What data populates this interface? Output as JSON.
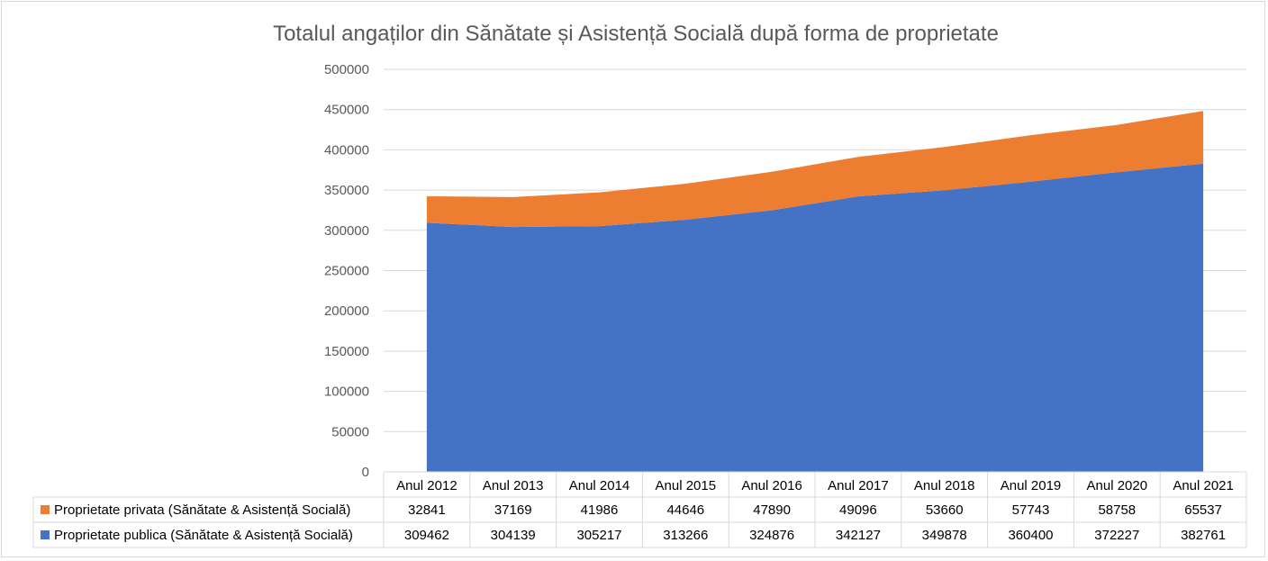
{
  "chart_data": {
    "type": "area",
    "stacked": true,
    "title": "Totalul angaților din Sănătate și Asistență Socială după forma de proprietate",
    "categories": [
      "Anul 2012",
      "Anul 2013",
      "Anul 2014",
      "Anul 2015",
      "Anul 2016",
      "Anul 2017",
      "Anul 2018",
      "Anul 2019",
      "Anul 2020",
      "Anul 2021"
    ],
    "ylim": [
      0,
      500000
    ],
    "yticks": [
      "0",
      "50000",
      "100000",
      "150000",
      "200000",
      "250000",
      "300000",
      "350000",
      "400000",
      "450000",
      "500000"
    ],
    "grid": true,
    "legend": "data-table",
    "series": [
      {
        "name": "Proprietate publica (Sănătate & Asistență Socială)",
        "color": "#4472C4",
        "values": [
          309462,
          304139,
          305217,
          313266,
          324876,
          342127,
          349878,
          360400,
          372227,
          382761
        ]
      },
      {
        "name": "Proprietate privata (Sănătate & Asistență Socială)",
        "color": "#ED7D31",
        "values": [
          32841,
          37169,
          41986,
          44646,
          47890,
          49096,
          53660,
          57743,
          58758,
          65537
        ]
      }
    ],
    "table_row_order": [
      1,
      0
    ]
  }
}
